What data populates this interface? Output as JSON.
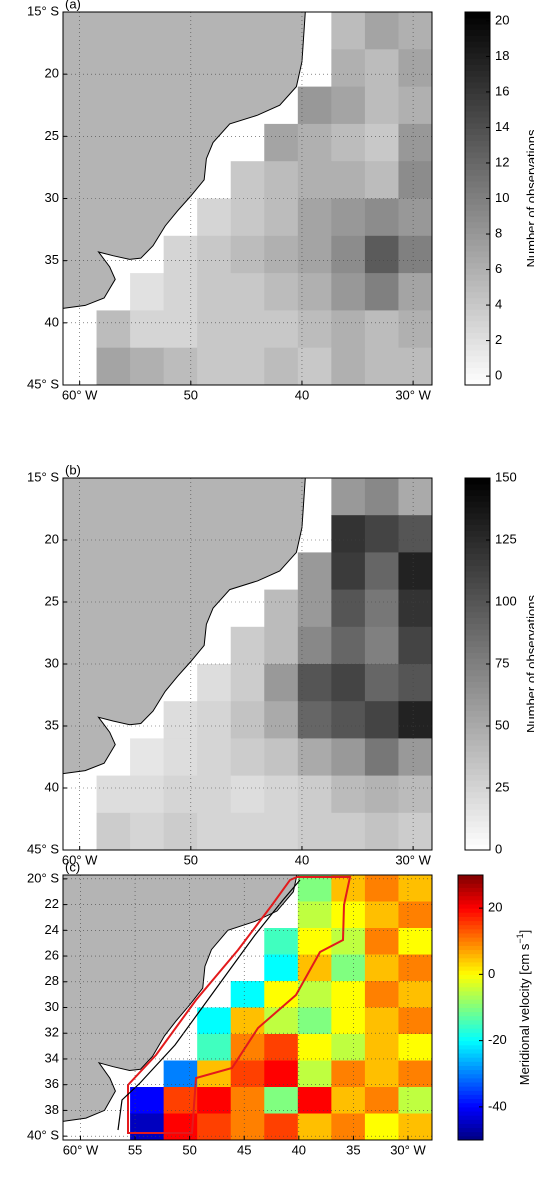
{
  "chart_data": [
    {
      "type": "heatmap",
      "panel_label": "(a)",
      "colormap": "gray",
      "grid": true,
      "xlim": [
        -61.5,
        -28.3
      ],
      "ylim": [
        -45,
        -15
      ],
      "xticks": [
        {
          "value": -60,
          "label": "60° W"
        },
        {
          "value": -50,
          "label": "50"
        },
        {
          "value": -40,
          "label": "40"
        },
        {
          "value": -30,
          "label": "30° W"
        }
      ],
      "yticks": [
        {
          "value": -15,
          "label": "15° S"
        },
        {
          "value": -20,
          "label": "20"
        },
        {
          "value": -25,
          "label": "25"
        },
        {
          "value": -30,
          "label": "30"
        },
        {
          "value": -35,
          "label": "35"
        },
        {
          "value": -40,
          "label": "40"
        },
        {
          "value": -45,
          "label": "45° S"
        }
      ],
      "values": [
        [
          null,
          null,
          null,
          null,
          null,
          null,
          null,
          null,
          5,
          7,
          6
        ],
        [
          null,
          null,
          null,
          null,
          null,
          null,
          null,
          null,
          6,
          5,
          7
        ],
        [
          null,
          null,
          null,
          null,
          null,
          null,
          null,
          8,
          7,
          5,
          6
        ],
        [
          null,
          null,
          null,
          null,
          null,
          null,
          7,
          6,
          5,
          4,
          8
        ],
        [
          null,
          null,
          null,
          null,
          null,
          4,
          5,
          6,
          6,
          5,
          9
        ],
        [
          null,
          null,
          null,
          null,
          3,
          4,
          5,
          7,
          8,
          9,
          8
        ],
        [
          null,
          null,
          null,
          3,
          4,
          5,
          6,
          7,
          9,
          13,
          10
        ],
        [
          null,
          null,
          2,
          3,
          4,
          4,
          5,
          6,
          8,
          10,
          7
        ],
        [
          null,
          5,
          3,
          3,
          4,
          4,
          4,
          5,
          6,
          5,
          6
        ],
        [
          null,
          7,
          6,
          5,
          4,
          4,
          5,
          4,
          6,
          5,
          5
        ]
      ],
      "colorbar": {
        "label": "Number of observations",
        "lim": [
          -0.5,
          20.5
        ],
        "ticks": [
          0,
          2,
          4,
          6,
          8,
          10,
          12,
          14,
          16,
          18,
          20
        ]
      }
    },
    {
      "type": "heatmap",
      "panel_label": "(b)",
      "colormap": "gray",
      "grid": true,
      "xlim": [
        -61.5,
        -28.3
      ],
      "ylim": [
        -45,
        -15
      ],
      "xticks": [
        {
          "value": -60,
          "label": "60° W"
        },
        {
          "value": -50,
          "label": "50"
        },
        {
          "value": -40,
          "label": "40"
        },
        {
          "value": -30,
          "label": "30° W"
        }
      ],
      "yticks": [
        {
          "value": -15,
          "label": "15° S"
        },
        {
          "value": -20,
          "label": "20"
        },
        {
          "value": -25,
          "label": "25"
        },
        {
          "value": -30,
          "label": "30"
        },
        {
          "value": -35,
          "label": "35"
        },
        {
          "value": -40,
          "label": "40"
        },
        {
          "value": -45,
          "label": "45° S"
        }
      ],
      "values": [
        [
          null,
          null,
          null,
          null,
          null,
          null,
          null,
          null,
          60,
          70,
          50
        ],
        [
          null,
          null,
          null,
          null,
          null,
          null,
          null,
          null,
          120,
          110,
          100
        ],
        [
          null,
          null,
          null,
          null,
          null,
          null,
          null,
          60,
          115,
          90,
          130
        ],
        [
          null,
          null,
          null,
          null,
          null,
          null,
          40,
          60,
          100,
          80,
          120
        ],
        [
          null,
          null,
          null,
          null,
          null,
          30,
          40,
          70,
          90,
          75,
          110
        ],
        [
          null,
          null,
          null,
          null,
          20,
          30,
          60,
          100,
          110,
          90,
          100
        ],
        [
          null,
          null,
          null,
          20,
          25,
          35,
          50,
          90,
          100,
          110,
          130
        ],
        [
          null,
          null,
          15,
          20,
          25,
          30,
          35,
          50,
          60,
          80,
          60
        ],
        [
          null,
          20,
          20,
          25,
          25,
          20,
          25,
          30,
          40,
          45,
          40
        ],
        [
          null,
          30,
          25,
          30,
          25,
          25,
          25,
          30,
          30,
          35,
          30
        ]
      ],
      "colorbar": {
        "label": "Number of observations",
        "lim": [
          0,
          150
        ],
        "ticks": [
          0,
          25,
          50,
          75,
          100,
          125,
          150
        ]
      }
    },
    {
      "type": "heatmap",
      "panel_label": "(c)",
      "colormap": "jet",
      "grid": true,
      "xlim": [
        -61.6,
        -27.8
      ],
      "ylim": [
        -40.3,
        -19.7
      ],
      "xticks": [
        {
          "value": -60,
          "label": "60° W"
        },
        {
          "value": -55,
          "label": "55"
        },
        {
          "value": -50,
          "label": "50"
        },
        {
          "value": -45,
          "label": "45"
        },
        {
          "value": -40,
          "label": "40"
        },
        {
          "value": -35,
          "label": "35"
        },
        {
          "value": -30,
          "label": "30° W"
        }
      ],
      "yticks": [
        {
          "value": -20,
          "label": "20° S"
        },
        {
          "value": -22,
          "label": "22"
        },
        {
          "value": -24,
          "label": "24"
        },
        {
          "value": -26,
          "label": "26"
        },
        {
          "value": -28,
          "label": "28"
        },
        {
          "value": -30,
          "label": "30"
        },
        {
          "value": -32,
          "label": "32"
        },
        {
          "value": -34,
          "label": "34"
        },
        {
          "value": -36,
          "label": "36"
        },
        {
          "value": -38,
          "label": "38"
        },
        {
          "value": -40,
          "label": "40° S"
        }
      ],
      "values": [
        [
          null,
          null,
          null,
          null,
          null,
          null,
          null,
          -10,
          5,
          10,
          5
        ],
        [
          null,
          null,
          null,
          null,
          null,
          null,
          null,
          -5,
          0,
          5,
          10
        ],
        [
          null,
          null,
          null,
          null,
          null,
          null,
          -15,
          0,
          -5,
          10,
          0
        ],
        [
          null,
          null,
          null,
          null,
          null,
          null,
          -20,
          5,
          -10,
          5,
          10
        ],
        [
          null,
          null,
          null,
          null,
          null,
          -20,
          0,
          -5,
          0,
          10,
          5
        ],
        [
          null,
          null,
          null,
          null,
          -20,
          5,
          -5,
          -10,
          0,
          5,
          10
        ],
        [
          null,
          null,
          null,
          null,
          -15,
          10,
          15,
          0,
          -5,
          5,
          0
        ],
        [
          null,
          null,
          null,
          -30,
          5,
          15,
          20,
          -5,
          10,
          5,
          10
        ],
        [
          null,
          null,
          -40,
          15,
          20,
          10,
          -10,
          20,
          5,
          10,
          -5
        ],
        [
          null,
          null,
          -45,
          20,
          15,
          10,
          15,
          5,
          10,
          0,
          5
        ]
      ],
      "colorbar": {
        "label": "Meridional velocity [cm s",
        "label_sup": "−1",
        "label_end": "]",
        "lim": [
          -50,
          30
        ],
        "ticks": [
          -40,
          -20,
          0,
          20
        ]
      }
    }
  ]
}
